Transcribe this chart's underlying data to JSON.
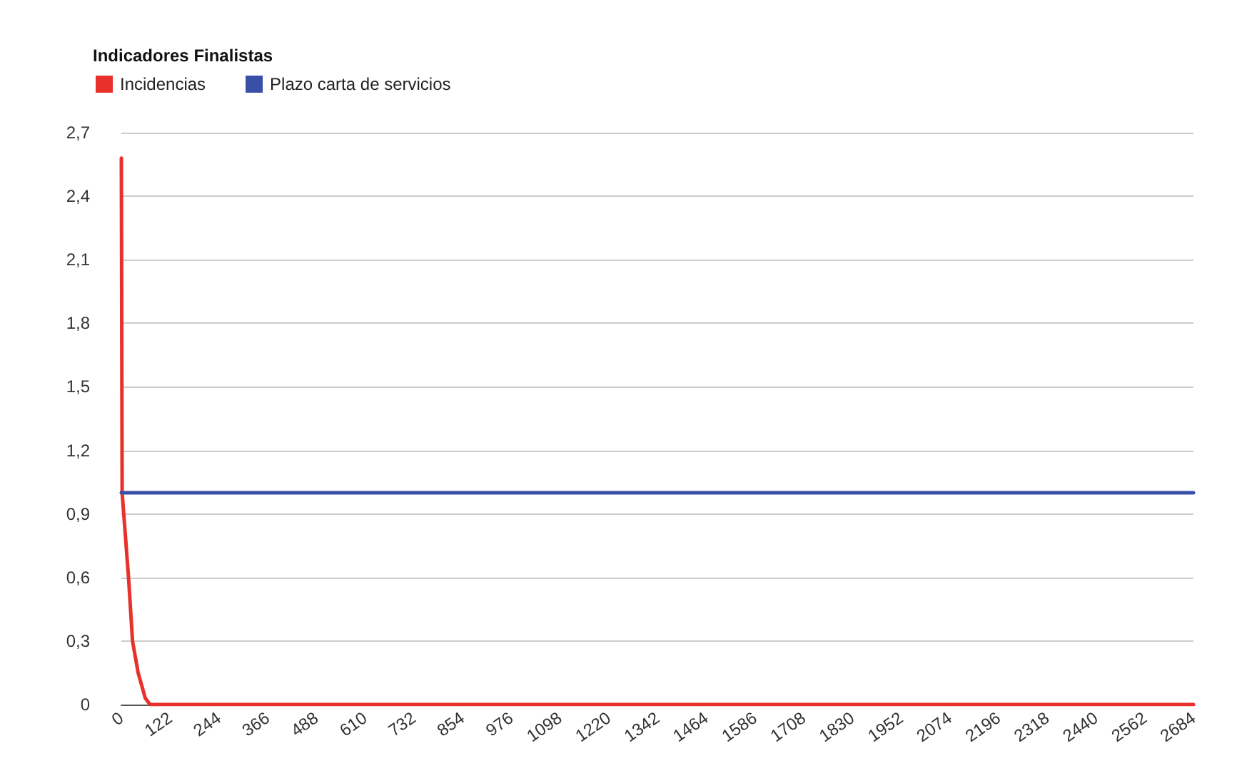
{
  "chart_data": {
    "type": "line",
    "title": "Indicadores Finalistas",
    "x": [
      0,
      2,
      6,
      18,
      28,
      42,
      60,
      72,
      2684
    ],
    "series": [
      {
        "name": "Incidencias",
        "color": "#e8312a",
        "values": [
          2.58,
          1.0,
          0.9,
          0.6,
          0.3,
          0.15,
          0.03,
          0,
          0
        ]
      },
      {
        "name": "Plazo carta de servicios",
        "color": "#3a4fa8",
        "x": [
          0,
          2684
        ],
        "values": [
          1,
          1
        ]
      }
    ],
    "xlim": [
      0,
      2684
    ],
    "xticks": [
      0,
      122,
      244,
      366,
      488,
      610,
      732,
      854,
      976,
      1098,
      1220,
      1342,
      1464,
      1586,
      1708,
      1830,
      1952,
      2074,
      2196,
      2318,
      2440,
      2562,
      2684
    ],
    "ylim": [
      0,
      2.7
    ],
    "yticks": [
      0,
      {
        "value": 0.3,
        "label": "0,3"
      },
      {
        "value": 0.6,
        "label": "0,6"
      },
      {
        "value": 0.9,
        "label": "0,9"
      },
      {
        "value": 1.2,
        "label": "1,2"
      },
      {
        "value": 1.5,
        "label": "1,5"
      },
      {
        "value": 1.8,
        "label": "1,8"
      },
      {
        "value": 2.1,
        "label": "2,1"
      },
      {
        "value": 2.4,
        "label": "2,4"
      },
      {
        "value": 2.7,
        "label": "2,7"
      }
    ],
    "grid": "y",
    "legend": "top left",
    "marker": "none",
    "line_style": "solid"
  }
}
